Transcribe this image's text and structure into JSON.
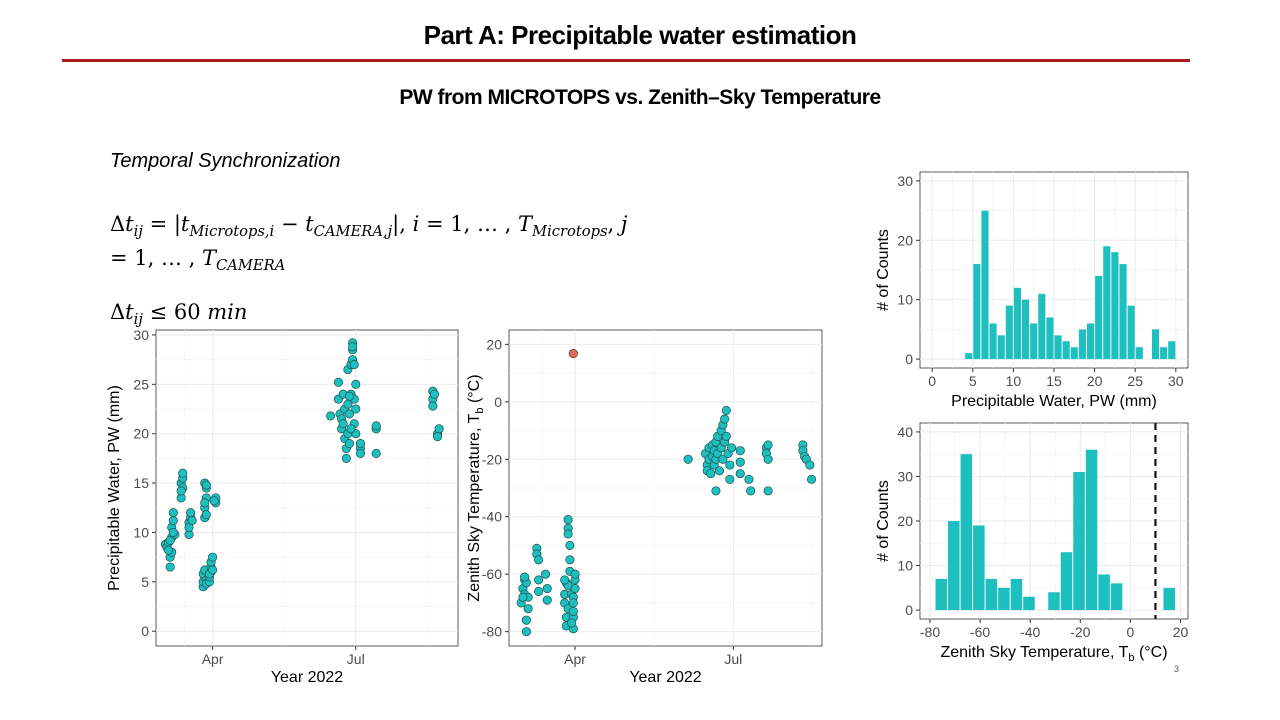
{
  "slide": {
    "title": "Part A:  Precipitable water estimation",
    "subtitle": "PW from MICROTOPS vs. Zenith–Sky Temperature",
    "sync_heading": "Temporal Synchronization",
    "accent_color": "#b01c1c",
    "page_number": "3"
  },
  "equations": {
    "eq1_line1_a": "Δ",
    "eq1_line1_b": "t",
    "eq1_line1_sub": "ij",
    "eq1_line1_c": " = |",
    "eq1_line1_d": "t",
    "eq1_line1_sub2": "Microtops,i",
    "eq1_line1_e": " − ",
    "eq1_line1_f": "t",
    "eq1_line1_sub3": "CAMERA,j",
    "eq1_line1_g": "|, ",
    "eq1_line1_h": "i",
    "eq1_line1_i": " = 1, … , ",
    "eq1_line1_j": "T",
    "eq1_line1_sub4": "Microtops",
    "eq1_line1_k": ", ",
    "eq1_line1_l": "j",
    "eq1_line2_a": "= 1, … , ",
    "eq1_line2_b": "T",
    "eq1_line2_sub": "CAMERA",
    "eq2_a": "Δ",
    "eq2_b": "t",
    "eq2_sub": "ij",
    "eq2_c": " ≤ 60 ",
    "eq2_d": "min"
  },
  "chart_data": [
    {
      "type": "scatter",
      "xlabel": "Year 2022",
      "ylabel": "Precipitable Water, PW  (mm)",
      "x_ticks": [
        "Apr",
        "Jul"
      ],
      "x_tick_days": [
        90,
        181
      ],
      "xlim_days": [
        54,
        246
      ],
      "ylim": [
        -1.5,
        30.5
      ],
      "y_ticks": [
        0,
        5,
        10,
        15,
        20,
        25,
        30
      ],
      "point_color": "#1dbfbf",
      "points": [
        [
          60,
          8.8
        ],
        [
          61,
          8.5
        ],
        [
          62,
          9.0
        ],
        [
          63,
          6.5
        ],
        [
          63,
          7.5
        ],
        [
          64,
          9.5
        ],
        [
          64,
          10.5
        ],
        [
          65,
          11.2
        ],
        [
          65,
          12.0
        ],
        [
          63,
          9.2
        ],
        [
          66,
          9.8
        ],
        [
          65,
          10.0
        ],
        [
          64,
          8.0
        ],
        [
          62,
          8.2
        ],
        [
          70,
          13.5
        ],
        [
          70,
          15.0
        ],
        [
          71,
          15.5
        ],
        [
          71,
          16.0
        ],
        [
          71,
          14.5
        ],
        [
          70,
          14.2
        ],
        [
          75,
          9.8
        ],
        [
          75,
          11.0
        ],
        [
          76,
          11.5
        ],
        [
          76,
          12.0
        ],
        [
          75,
          10.5
        ],
        [
          77,
          11.2
        ],
        [
          84,
          4.5
        ],
        [
          84,
          5.0
        ],
        [
          85,
          5.5
        ],
        [
          85,
          6.0
        ],
        [
          84,
          5.8
        ],
        [
          86,
          5.2
        ],
        [
          86,
          4.8
        ],
        [
          85,
          6.2
        ],
        [
          85,
          11.5
        ],
        [
          85,
          12.5
        ],
        [
          86,
          13.5
        ],
        [
          86,
          14.5
        ],
        [
          85,
          15.0
        ],
        [
          86,
          14.8
        ],
        [
          85,
          13.0
        ],
        [
          86,
          11.8
        ],
        [
          88,
          5.0
        ],
        [
          88,
          5.5
        ],
        [
          89,
          6.0
        ],
        [
          89,
          6.5
        ],
        [
          89,
          7.0
        ],
        [
          90,
          7.5
        ],
        [
          88,
          5.8
        ],
        [
          90,
          6.2
        ],
        [
          92,
          13.0
        ],
        [
          92,
          13.5
        ],
        [
          91,
          13.2
        ],
        [
          165,
          21.8
        ],
        [
          170,
          23.5
        ],
        [
          170,
          25.2
        ],
        [
          171,
          22.0
        ],
        [
          172,
          21.5
        ],
        [
          172,
          20.5
        ],
        [
          173,
          21.0
        ],
        [
          173,
          24.0
        ],
        [
          174,
          19.5
        ],
        [
          174,
          22.5
        ],
        [
          175,
          18.5
        ],
        [
          175,
          17.5
        ],
        [
          176,
          20.0
        ],
        [
          176,
          23.0
        ],
        [
          177,
          19.0
        ],
        [
          177,
          22.0
        ],
        [
          176,
          26.5
        ],
        [
          178,
          24.0
        ],
        [
          178,
          27.0
        ],
        [
          179,
          27.5
        ],
        [
          179,
          28.5
        ],
        [
          179,
          29.2
        ],
        [
          179,
          28.8
        ],
        [
          180,
          27.0
        ],
        [
          180,
          23.5
        ],
        [
          180,
          21.0
        ],
        [
          181,
          22.5
        ],
        [
          181,
          20.0
        ],
        [
          181,
          25.0
        ],
        [
          178,
          20.5
        ],
        [
          177,
          23.8
        ],
        [
          184,
          18.5
        ],
        [
          184,
          18.0
        ],
        [
          184,
          19.0
        ],
        [
          194,
          20.5
        ],
        [
          194,
          20.8
        ],
        [
          194,
          18.0
        ],
        [
          230,
          23.5
        ],
        [
          230,
          24.3
        ],
        [
          230,
          22.8
        ],
        [
          231,
          24.0
        ],
        [
          233,
          20.0
        ],
        [
          234,
          20.5
        ],
        [
          233,
          19.7
        ]
      ]
    },
    {
      "type": "scatter",
      "xlabel": "Year 2022",
      "ylabel": "Zenith Sky Temperature, T_b  (°C)",
      "ylabel_main": "Zenith Sky Temperature, T",
      "ylabel_sub": "b",
      "ylabel_unit": "(°C)",
      "x_ticks": [
        "Apr",
        "Jul"
      ],
      "x_tick_days": [
        90,
        181
      ],
      "xlim_days": [
        52,
        232
      ],
      "ylim": [
        -85,
        25
      ],
      "y_ticks": [
        -80,
        -60,
        -40,
        -20,
        0,
        20
      ],
      "point_color": "#1dbfbf",
      "outlier_color": "#e06b5c",
      "outliers": [
        [
          89,
          16.8
        ]
      ],
      "points": [
        [
          59,
          -70
        ],
        [
          60,
          -65
        ],
        [
          61,
          -62
        ],
        [
          61,
          -67
        ],
        [
          62,
          -76
        ],
        [
          62,
          -80
        ],
        [
          63,
          -72
        ],
        [
          62,
          -63
        ],
        [
          61,
          -61
        ],
        [
          63,
          -68
        ],
        [
          60,
          -68
        ],
        [
          68,
          -51
        ],
        [
          68,
          -53
        ],
        [
          69,
          -55
        ],
        [
          69,
          -62
        ],
        [
          69,
          -66
        ],
        [
          73,
          -60
        ],
        [
          74,
          -65
        ],
        [
          74,
          -69
        ],
        [
          84,
          -67
        ],
        [
          84,
          -70
        ],
        [
          85,
          -75
        ],
        [
          85,
          -78
        ],
        [
          85,
          -63
        ],
        [
          86,
          -64
        ],
        [
          86,
          -44
        ],
        [
          86,
          -41
        ],
        [
          86,
          -46
        ],
        [
          87,
          -50
        ],
        [
          87,
          -55
        ],
        [
          87,
          -59
        ],
        [
          86,
          -72
        ],
        [
          84,
          -62
        ],
        [
          88,
          -67
        ],
        [
          89,
          -68
        ],
        [
          89,
          -70
        ],
        [
          89,
          -75
        ],
        [
          89,
          -79
        ],
        [
          90,
          -65
        ],
        [
          90,
          -62
        ],
        [
          90,
          -60
        ],
        [
          89,
          -73
        ],
        [
          88,
          -77
        ],
        [
          155,
          -20
        ],
        [
          165,
          -18
        ],
        [
          166,
          -22
        ],
        [
          166,
          -24
        ],
        [
          167,
          -16
        ],
        [
          167,
          -20
        ],
        [
          168,
          -25
        ],
        [
          169,
          -19
        ],
        [
          169,
          -15
        ],
        [
          170,
          -17
        ],
        [
          170,
          -22
        ],
        [
          171,
          -14
        ],
        [
          171,
          -20
        ],
        [
          172,
          -12
        ],
        [
          172,
          -18
        ],
        [
          173,
          -24
        ],
        [
          174,
          -10
        ],
        [
          174,
          -16
        ],
        [
          175,
          -20
        ],
        [
          175,
          -8
        ],
        [
          176,
          -14
        ],
        [
          176,
          -6
        ],
        [
          177,
          -12
        ],
        [
          177,
          -3
        ],
        [
          178,
          -18
        ],
        [
          179,
          -22
        ],
        [
          180,
          -16
        ],
        [
          171,
          -31
        ],
        [
          179,
          -27
        ],
        [
          185,
          -25
        ],
        [
          185,
          -21
        ],
        [
          185,
          -17
        ],
        [
          190,
          -27
        ],
        [
          191,
          -31
        ],
        [
          200,
          -16
        ],
        [
          200,
          -18
        ],
        [
          201,
          -20
        ],
        [
          201,
          -15
        ],
        [
          201,
          -31
        ],
        [
          221,
          -15
        ],
        [
          221,
          -17
        ],
        [
          222,
          -19
        ],
        [
          223,
          -20
        ],
        [
          225,
          -22
        ],
        [
          226,
          -27
        ]
      ]
    },
    {
      "type": "bar",
      "xlabel": "Precipitable Water, PW  (mm)",
      "ylabel": "# of Counts",
      "xlim": [
        -1.5,
        31.5
      ],
      "ylim": [
        -1.5,
        31.5
      ],
      "x_ticks": [
        0,
        5,
        10,
        15,
        20,
        25,
        30
      ],
      "y_ticks": [
        0,
        10,
        20,
        30
      ],
      "bin_width": 1,
      "bin_starts": [
        4,
        5,
        6,
        7,
        8,
        9,
        10,
        11,
        12,
        13,
        14,
        15,
        16,
        17,
        18,
        19,
        20,
        21,
        22,
        23,
        24,
        25,
        27,
        28,
        29
      ],
      "values": [
        1,
        16,
        25,
        6,
        4,
        9,
        12,
        10,
        6,
        11,
        7,
        4,
        3,
        2,
        5,
        6,
        14,
        19,
        18,
        16,
        9,
        2,
        5,
        2,
        3
      ],
      "bar_color": "#1dbfbf"
    },
    {
      "type": "bar",
      "xlabel": "Zenith Sky Temperature, T_b  (°C)",
      "xlabel_main": "Zenith Sky Temperature, T",
      "xlabel_sub": "b",
      "xlabel_unit": "(°C)",
      "ylabel": "# of Counts",
      "xlim": [
        -84,
        23
      ],
      "ylim": [
        -2,
        42
      ],
      "x_ticks": [
        -80,
        -60,
        -40,
        -20,
        0,
        20
      ],
      "y_ticks": [
        0,
        10,
        20,
        30,
        40
      ],
      "bin_width": 5,
      "bin_starts": [
        -78,
        -73,
        -68,
        -63,
        -58,
        -53,
        -48,
        -43,
        -33,
        -28,
        -23,
        -18,
        -13,
        -8,
        13
      ],
      "values": [
        7,
        20,
        35,
        19,
        7,
        5,
        7,
        3,
        4,
        13,
        31,
        36,
        8,
        6,
        5
      ],
      "bar_color": "#1dbfbf",
      "dashed_line_x": 10
    }
  ]
}
